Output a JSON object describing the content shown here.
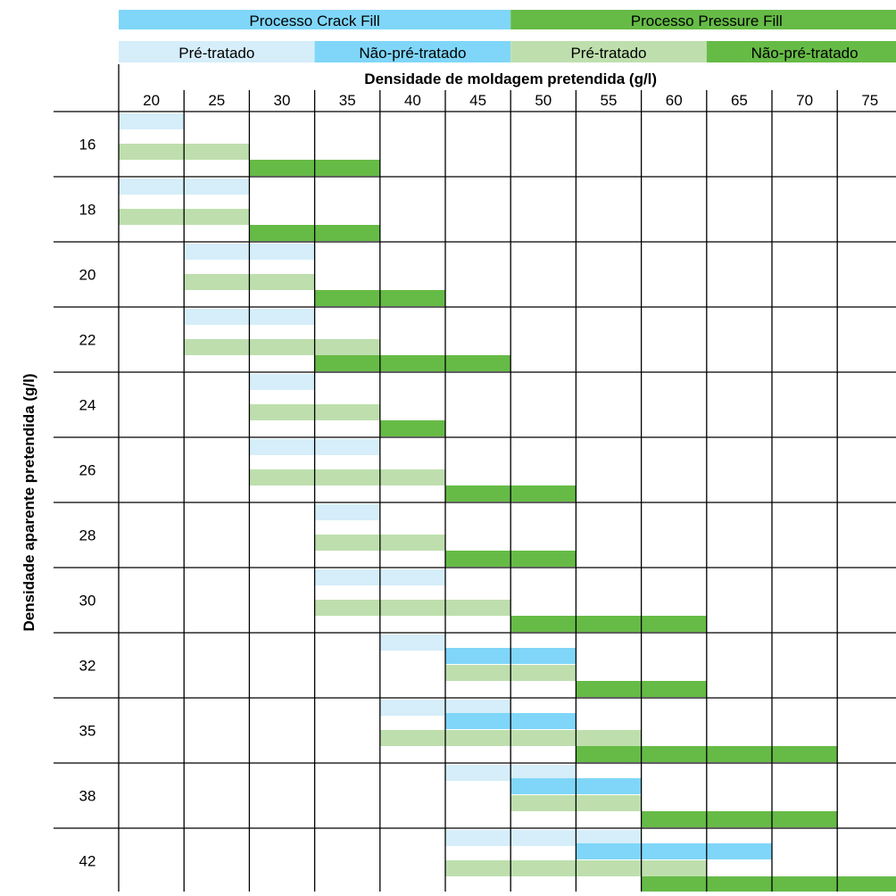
{
  "chart_data": {
    "type": "table",
    "header": {
      "processes": [
        {
          "label": "Processo Crack Fill",
          "color": "#7fd6f8"
        },
        {
          "label": "Processo Pressure Fill",
          "color": "#66bb46"
        }
      ],
      "subgroups": [
        {
          "label": "Pré-tratado",
          "color": "#d5eef9"
        },
        {
          "label": "Não-pré-tratado",
          "color": "#7fd6f8"
        },
        {
          "label": "Pré-tratado",
          "color": "#bedfad"
        },
        {
          "label": "Não-pré-tratado",
          "color": "#66bb46"
        }
      ]
    },
    "xlabel": "Densidade de moldagem pretendida (g/l)",
    "ylabel": "Densidade aparente pretendida (g/l)",
    "x_ticks": [
      "20",
      "25",
      "30",
      "35",
      "40",
      "45",
      "50",
      "55",
      "60",
      "65",
      "70",
      "75"
    ],
    "y_ticks": [
      "16",
      "18",
      "20",
      "22",
      "24",
      "26",
      "28",
      "30",
      "32",
      "35",
      "38",
      "42"
    ],
    "series_colors": {
      "crack_pre": "#d5eef9",
      "crack_nonpre": "#7fd6f8",
      "pressure_pre": "#bedfad",
      "pressure_nonpre": "#66bb46"
    },
    "rows": [
      {
        "y": "16",
        "bands": [
          {
            "series": "crack_pre",
            "x_from": "20",
            "x_to": "20"
          },
          {
            "series": "pressure_pre",
            "x_from": "20",
            "x_to": "25"
          },
          {
            "series": "pressure_nonpre",
            "x_from": "30",
            "x_to": "35"
          }
        ]
      },
      {
        "y": "18",
        "bands": [
          {
            "series": "crack_pre",
            "x_from": "20",
            "x_to": "25"
          },
          {
            "series": "pressure_pre",
            "x_from": "20",
            "x_to": "25"
          },
          {
            "series": "pressure_nonpre",
            "x_from": "30",
            "x_to": "35"
          }
        ]
      },
      {
        "y": "20",
        "bands": [
          {
            "series": "crack_pre",
            "x_from": "25",
            "x_to": "30"
          },
          {
            "series": "pressure_pre",
            "x_from": "25",
            "x_to": "30"
          },
          {
            "series": "pressure_nonpre",
            "x_from": "35",
            "x_to": "40"
          }
        ]
      },
      {
        "y": "22",
        "bands": [
          {
            "series": "crack_pre",
            "x_from": "25",
            "x_to": "30"
          },
          {
            "series": "pressure_pre",
            "x_from": "25",
            "x_to": "35"
          },
          {
            "series": "pressure_nonpre",
            "x_from": "35",
            "x_to": "45"
          }
        ]
      },
      {
        "y": "24",
        "bands": [
          {
            "series": "crack_pre",
            "x_from": "30",
            "x_to": "30"
          },
          {
            "series": "pressure_pre",
            "x_from": "30",
            "x_to": "35"
          },
          {
            "series": "pressure_nonpre",
            "x_from": "40",
            "x_to": "40"
          }
        ]
      },
      {
        "y": "26",
        "bands": [
          {
            "series": "crack_pre",
            "x_from": "30",
            "x_to": "35"
          },
          {
            "series": "pressure_pre",
            "x_from": "30",
            "x_to": "40"
          },
          {
            "series": "pressure_nonpre",
            "x_from": "45",
            "x_to": "50"
          }
        ]
      },
      {
        "y": "28",
        "bands": [
          {
            "series": "crack_pre",
            "x_from": "35",
            "x_to": "35"
          },
          {
            "series": "pressure_pre",
            "x_from": "35",
            "x_to": "40"
          },
          {
            "series": "pressure_nonpre",
            "x_from": "45",
            "x_to": "50"
          }
        ]
      },
      {
        "y": "30",
        "bands": [
          {
            "series": "crack_pre",
            "x_from": "35",
            "x_to": "40"
          },
          {
            "series": "pressure_pre",
            "x_from": "35",
            "x_to": "45"
          },
          {
            "series": "pressure_nonpre",
            "x_from": "50",
            "x_to": "60"
          }
        ]
      },
      {
        "y": "32",
        "bands": [
          {
            "series": "crack_pre",
            "x_from": "40",
            "x_to": "40"
          },
          {
            "series": "crack_nonpre",
            "x_from": "45",
            "x_to": "50"
          },
          {
            "series": "pressure_pre",
            "x_from": "45",
            "x_to": "50"
          },
          {
            "series": "pressure_nonpre",
            "x_from": "55",
            "x_to": "60"
          }
        ]
      },
      {
        "y": "35",
        "bands": [
          {
            "series": "crack_pre",
            "x_from": "40",
            "x_to": "45"
          },
          {
            "series": "crack_nonpre",
            "x_from": "45",
            "x_to": "50"
          },
          {
            "series": "pressure_pre",
            "x_from": "40",
            "x_to": "55"
          },
          {
            "series": "pressure_nonpre",
            "x_from": "55",
            "x_to": "70"
          }
        ]
      },
      {
        "y": "38",
        "bands": [
          {
            "series": "crack_pre",
            "x_from": "45",
            "x_to": "50"
          },
          {
            "series": "crack_nonpre",
            "x_from": "50",
            "x_to": "55"
          },
          {
            "series": "pressure_pre",
            "x_from": "50",
            "x_to": "55"
          },
          {
            "series": "pressure_nonpre",
            "x_from": "60",
            "x_to": "70"
          }
        ]
      },
      {
        "y": "42",
        "bands": [
          {
            "series": "crack_pre",
            "x_from": "45",
            "x_to": "55"
          },
          {
            "series": "crack_nonpre",
            "x_from": "55",
            "x_to": "65"
          },
          {
            "series": "pressure_pre",
            "x_from": "45",
            "x_to": "60"
          },
          {
            "series": "pressure_nonpre",
            "x_from": "60",
            "x_to": "75"
          }
        ]
      }
    ]
  }
}
